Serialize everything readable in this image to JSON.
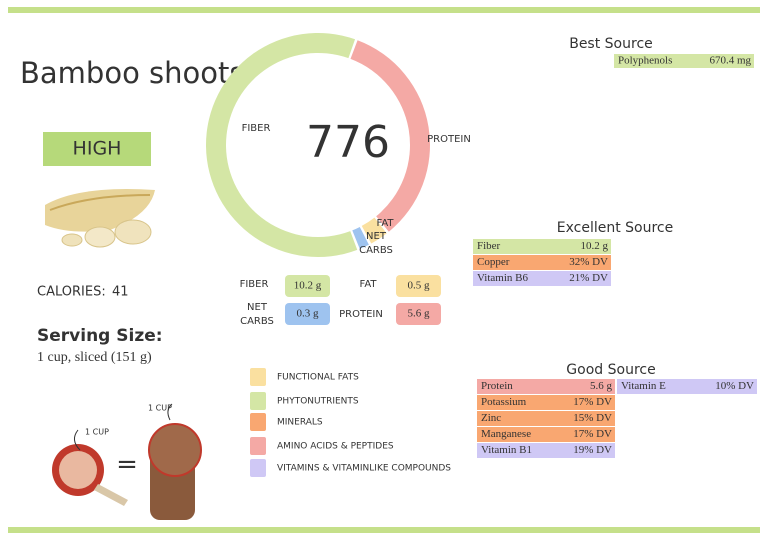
{
  "title": "Bamboo shoots",
  "rating": "HIGH",
  "calories": {
    "label": "CALORIES:",
    "value": 41
  },
  "serving": {
    "label": "Serving Size:",
    "value": "1 cup, sliced (151 g)"
  },
  "donut": {
    "center": 776,
    "nutrients": [
      {
        "name": "PROTEIN",
        "value": 5.6,
        "label": "5.6 g",
        "color": "#f4a9a5"
      },
      {
        "name": "FAT",
        "value": 0.5,
        "label": "0.5 g",
        "color": "#fae0a0"
      },
      {
        "name": "NET CARBS",
        "value": 0.3,
        "label": "0.3 g",
        "color": "#9ec3ef"
      },
      {
        "name": "FIBER",
        "value": 10.2,
        "label": "10.2 g",
        "color": "#d4e6a5"
      }
    ]
  },
  "legend": [
    {
      "name": "FUNCTIONAL FATS",
      "color": "#fae0a0"
    },
    {
      "name": "PHYTONUTRIENTS",
      "color": "#d4e6a5"
    },
    {
      "name": "MINERALS",
      "color": "#f9a771"
    },
    {
      "name": "AMINO ACIDS & PEPTIDES",
      "color": "#f4a9a5"
    },
    {
      "name": "VITAMINS & VITAMINLIKE COMPOUNDS",
      "color": "#cfc8f5"
    }
  ],
  "best_source": {
    "heading": "Best Source",
    "rows": [
      {
        "name": "Polyphenols",
        "amount": "670.4 mg",
        "color": "#d4e6a5"
      }
    ]
  },
  "excellent_source": {
    "heading": "Excellent Source",
    "rows": [
      {
        "name": "Fiber",
        "amount": "10.2 g",
        "color": "#d4e6a5"
      },
      {
        "name": "Copper",
        "amount": "32% DV",
        "color": "#f9a771"
      },
      {
        "name": "Vitamin B6",
        "amount": "21% DV",
        "color": "#cfc8f5"
      }
    ]
  },
  "good_source": {
    "heading": "Good Source",
    "rows": [
      {
        "name": "Protein",
        "amount": "5.6 g",
        "color": "#f4a9a5"
      },
      {
        "name": "Potassium",
        "amount": "17% DV",
        "color": "#f9a771"
      },
      {
        "name": "Zinc",
        "amount": "15% DV",
        "color": "#f9a771"
      },
      {
        "name": "Manganese",
        "amount": "17% DV",
        "color": "#f9a771"
      },
      {
        "name": "Vitamin B1",
        "amount": "19% DV",
        "color": "#cfc8f5"
      },
      {
        "name": "Vitamin E",
        "amount": "10% DV",
        "color": "#cfc8f5"
      }
    ]
  },
  "illustration": {
    "cup_label": "1 CUP",
    "hand_label": "1 CUP",
    "equals": "="
  }
}
